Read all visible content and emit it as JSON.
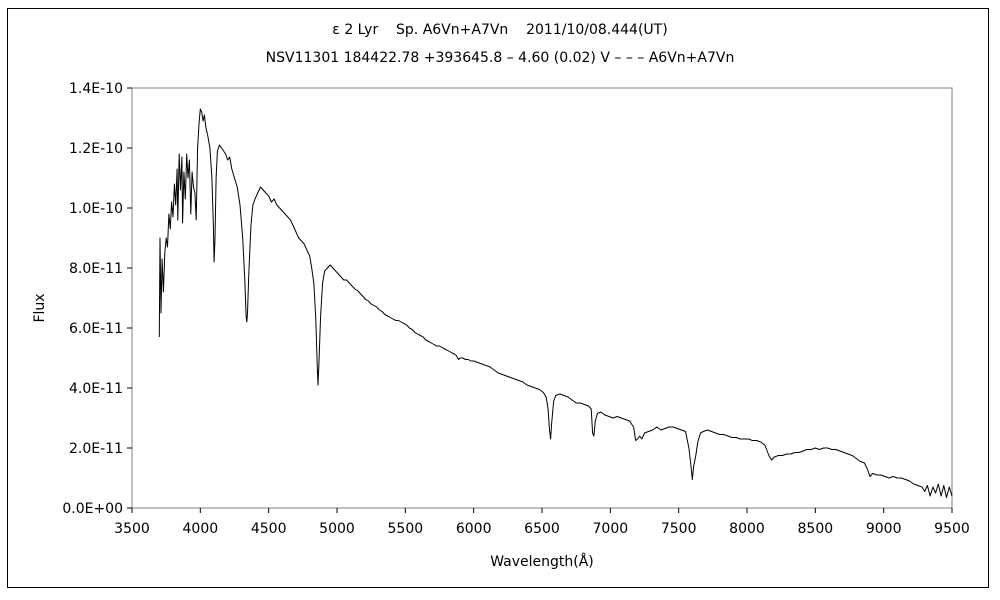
{
  "chart_data": {
    "type": "line",
    "title": "ε 2 Lyr    Sp. A6Vn+A7Vn    2011/10/08.444(UT)",
    "subtitle": "NSV11301 184422.78 +393645.8 – 4.60 (0.02) V – – – A6Vn+A7Vn",
    "xlabel": "Wavelength(Å)",
    "ylabel": "Flux",
    "xlim": [
      3500,
      9500
    ],
    "ylim": [
      0,
      1.4e-10
    ],
    "x_ticks": [
      "3500",
      "4000",
      "4500",
      "5000",
      "5500",
      "6000",
      "6500",
      "7000",
      "7500",
      "8000",
      "8500",
      "9000",
      "9500"
    ],
    "y_ticks": [
      "0.0E+00",
      "2.0E-11",
      "4.0E-11",
      "6.0E-11",
      "8.0E-11",
      "1.0E-10",
      "1.2E-10",
      "1.4E-10"
    ],
    "grid": false,
    "series": [
      {
        "points": [
          [
            3700,
            5.7e-11
          ],
          [
            3705,
            9e-11
          ],
          [
            3712,
            6.5e-11
          ],
          [
            3720,
            8.3e-11
          ],
          [
            3730,
            7.2e-11
          ],
          [
            3740,
            8.5e-11
          ],
          [
            3750,
            9e-11
          ],
          [
            3760,
            8.7e-11
          ],
          [
            3770,
            9.8e-11
          ],
          [
            3780,
            9.3e-11
          ],
          [
            3790,
            1.02e-10
          ],
          [
            3800,
            9.7e-11
          ],
          [
            3810,
            1.08e-10
          ],
          [
            3820,
            1.01e-10
          ],
          [
            3830,
            1.13e-10
          ],
          [
            3835,
            9.6e-11
          ],
          [
            3845,
            1.18e-10
          ],
          [
            3855,
            1.06e-10
          ],
          [
            3865,
            1.17e-10
          ],
          [
            3870,
            9.5e-11
          ],
          [
            3880,
            1.12e-10
          ],
          [
            3890,
            1.03e-10
          ],
          [
            3900,
            1.18e-10
          ],
          [
            3910,
            1.1e-10
          ],
          [
            3920,
            1.16e-10
          ],
          [
            3930,
            9.8e-11
          ],
          [
            3940,
            1.12e-10
          ],
          [
            3950,
            1.07e-10
          ],
          [
            3960,
            1.05e-10
          ],
          [
            3970,
            9.6e-11
          ],
          [
            3980,
            1.2e-10
          ],
          [
            3990,
            1.28e-10
          ],
          [
            4000,
            1.33e-10
          ],
          [
            4010,
            1.32e-10
          ],
          [
            4020,
            1.29e-10
          ],
          [
            4030,
            1.31e-10
          ],
          [
            4040,
            1.27e-10
          ],
          [
            4055,
            1.24e-10
          ],
          [
            4070,
            1.2e-10
          ],
          [
            4085,
            1.1e-10
          ],
          [
            4095,
            9.5e-11
          ],
          [
            4101,
            8.2e-11
          ],
          [
            4107,
            9e-11
          ],
          [
            4115,
            1.1e-10
          ],
          [
            4125,
            1.19e-10
          ],
          [
            4140,
            1.21e-10
          ],
          [
            4155,
            1.2e-10
          ],
          [
            4170,
            1.19e-10
          ],
          [
            4185,
            1.18e-10
          ],
          [
            4200,
            1.16e-10
          ],
          [
            4215,
            1.17e-10
          ],
          [
            4230,
            1.13e-10
          ],
          [
            4250,
            1.1e-10
          ],
          [
            4270,
            1.07e-10
          ],
          [
            4290,
            1.01e-10
          ],
          [
            4310,
            9e-11
          ],
          [
            4325,
            7.6e-11
          ],
          [
            4335,
            6.4e-11
          ],
          [
            4340,
            6.2e-11
          ],
          [
            4345,
            6.5e-11
          ],
          [
            4355,
            7.8e-11
          ],
          [
            4370,
            9.4e-11
          ],
          [
            4385,
            1.01e-10
          ],
          [
            4400,
            1.03e-10
          ],
          [
            4420,
            1.05e-10
          ],
          [
            4440,
            1.07e-10
          ],
          [
            4460,
            1.06e-10
          ],
          [
            4480,
            1.05e-10
          ],
          [
            4500,
            1.04e-10
          ],
          [
            4520,
            1.02e-10
          ],
          [
            4540,
            1.03e-10
          ],
          [
            4560,
            1.01e-10
          ],
          [
            4580,
            1e-10
          ],
          [
            4600,
            9.9e-11
          ],
          [
            4620,
            9.8e-11
          ],
          [
            4640,
            9.7e-11
          ],
          [
            4660,
            9.6e-11
          ],
          [
            4680,
            9.4e-11
          ],
          [
            4700,
            9.2e-11
          ],
          [
            4720,
            9e-11
          ],
          [
            4740,
            8.9e-11
          ],
          [
            4760,
            8.8e-11
          ],
          [
            4780,
            8.6e-11
          ],
          [
            4800,
            8.4e-11
          ],
          [
            4815,
            8e-11
          ],
          [
            4830,
            7.5e-11
          ],
          [
            4845,
            6.3e-11
          ],
          [
            4855,
            4.8e-11
          ],
          [
            4861,
            4.1e-11
          ],
          [
            4867,
            4.7e-11
          ],
          [
            4880,
            6.4e-11
          ],
          [
            4895,
            7.5e-11
          ],
          [
            4910,
            7.9e-11
          ],
          [
            4930,
            8e-11
          ],
          [
            4950,
            8.1e-11
          ],
          [
            4970,
            8e-11
          ],
          [
            4990,
            7.9e-11
          ],
          [
            5010,
            7.8e-11
          ],
          [
            5030,
            7.7e-11
          ],
          [
            5050,
            7.6e-11
          ],
          [
            5070,
            7.6e-11
          ],
          [
            5090,
            7.5e-11
          ],
          [
            5110,
            7.4e-11
          ],
          [
            5130,
            7.3e-11
          ],
          [
            5150,
            7.25e-11
          ],
          [
            5170,
            7.15e-11
          ],
          [
            5190,
            7.05e-11
          ],
          [
            5210,
            6.95e-11
          ],
          [
            5230,
            6.9e-11
          ],
          [
            5250,
            6.8e-11
          ],
          [
            5270,
            6.75e-11
          ],
          [
            5290,
            6.7e-11
          ],
          [
            5310,
            6.6e-11
          ],
          [
            5330,
            6.55e-11
          ],
          [
            5350,
            6.45e-11
          ],
          [
            5370,
            6.4e-11
          ],
          [
            5390,
            6.35e-11
          ],
          [
            5410,
            6.3e-11
          ],
          [
            5430,
            6.25e-11
          ],
          [
            5450,
            6.25e-11
          ],
          [
            5470,
            6.2e-11
          ],
          [
            5490,
            6.15e-11
          ],
          [
            5510,
            6.1e-11
          ],
          [
            5530,
            6e-11
          ],
          [
            5550,
            5.95e-11
          ],
          [
            5570,
            5.85e-11
          ],
          [
            5590,
            5.8e-11
          ],
          [
            5610,
            5.75e-11
          ],
          [
            5630,
            5.7e-11
          ],
          [
            5650,
            5.6e-11
          ],
          [
            5670,
            5.55e-11
          ],
          [
            5690,
            5.5e-11
          ],
          [
            5710,
            5.45e-11
          ],
          [
            5730,
            5.4e-11
          ],
          [
            5750,
            5.4e-11
          ],
          [
            5770,
            5.35e-11
          ],
          [
            5790,
            5.3e-11
          ],
          [
            5810,
            5.25e-11
          ],
          [
            5830,
            5.2e-11
          ],
          [
            5850,
            5.15e-11
          ],
          [
            5870,
            5.1e-11
          ],
          [
            5890,
            4.95e-11
          ],
          [
            5900,
            5e-11
          ],
          [
            5920,
            5e-11
          ],
          [
            5940,
            4.95e-11
          ],
          [
            5960,
            4.95e-11
          ],
          [
            5980,
            4.9e-11
          ],
          [
            6000,
            4.9e-11
          ],
          [
            6030,
            4.85e-11
          ],
          [
            6060,
            4.8e-11
          ],
          [
            6090,
            4.75e-11
          ],
          [
            6120,
            4.7e-11
          ],
          [
            6150,
            4.6e-11
          ],
          [
            6180,
            4.5e-11
          ],
          [
            6210,
            4.45e-11
          ],
          [
            6240,
            4.4e-11
          ],
          [
            6270,
            4.35e-11
          ],
          [
            6300,
            4.3e-11
          ],
          [
            6330,
            4.25e-11
          ],
          [
            6360,
            4.2e-11
          ],
          [
            6390,
            4.1e-11
          ],
          [
            6420,
            4.05e-11
          ],
          [
            6450,
            4e-11
          ],
          [
            6480,
            3.95e-11
          ],
          [
            6510,
            3.85e-11
          ],
          [
            6530,
            3.7e-11
          ],
          [
            6545,
            3.3e-11
          ],
          [
            6555,
            2.6e-11
          ],
          [
            6563,
            2.3e-11
          ],
          [
            6570,
            2.8e-11
          ],
          [
            6585,
            3.55e-11
          ],
          [
            6600,
            3.75e-11
          ],
          [
            6630,
            3.8e-11
          ],
          [
            6660,
            3.75e-11
          ],
          [
            6690,
            3.7e-11
          ],
          [
            6720,
            3.6e-11
          ],
          [
            6750,
            3.5e-11
          ],
          [
            6780,
            3.5e-11
          ],
          [
            6810,
            3.45e-11
          ],
          [
            6840,
            3.4e-11
          ],
          [
            6860,
            3.3e-11
          ],
          [
            6870,
            2.5e-11
          ],
          [
            6880,
            2.4e-11
          ],
          [
            6890,
            2.9e-11
          ],
          [
            6905,
            3.15e-11
          ],
          [
            6930,
            3.2e-11
          ],
          [
            6960,
            3.1e-11
          ],
          [
            6990,
            3.05e-11
          ],
          [
            7020,
            3e-11
          ],
          [
            7050,
            3.05e-11
          ],
          [
            7080,
            3e-11
          ],
          [
            7110,
            2.95e-11
          ],
          [
            7140,
            2.9e-11
          ],
          [
            7170,
            2.7e-11
          ],
          [
            7185,
            2.25e-11
          ],
          [
            7200,
            2.3e-11
          ],
          [
            7215,
            2.4e-11
          ],
          [
            7230,
            2.3e-11
          ],
          [
            7250,
            2.5e-11
          ],
          [
            7280,
            2.55e-11
          ],
          [
            7310,
            2.6e-11
          ],
          [
            7340,
            2.7e-11
          ],
          [
            7370,
            2.6e-11
          ],
          [
            7400,
            2.65e-11
          ],
          [
            7430,
            2.7e-11
          ],
          [
            7460,
            2.7e-11
          ],
          [
            7490,
            2.65e-11
          ],
          [
            7520,
            2.6e-11
          ],
          [
            7550,
            2.55e-11
          ],
          [
            7575,
            2e-11
          ],
          [
            7590,
            1.4e-11
          ],
          [
            7600,
            9.5e-12
          ],
          [
            7610,
            1.4e-11
          ],
          [
            7625,
            1.75e-11
          ],
          [
            7640,
            2.2e-11
          ],
          [
            7660,
            2.5e-11
          ],
          [
            7680,
            2.55e-11
          ],
          [
            7710,
            2.6e-11
          ],
          [
            7740,
            2.55e-11
          ],
          [
            7770,
            2.5e-11
          ],
          [
            7800,
            2.45e-11
          ],
          [
            7830,
            2.45e-11
          ],
          [
            7860,
            2.4e-11
          ],
          [
            7890,
            2.35e-11
          ],
          [
            7920,
            2.35e-11
          ],
          [
            7950,
            2.3e-11
          ],
          [
            7980,
            2.3e-11
          ],
          [
            8010,
            2.3e-11
          ],
          [
            8040,
            2.25e-11
          ],
          [
            8070,
            2.25e-11
          ],
          [
            8100,
            2.2e-11
          ],
          [
            8130,
            2.1e-11
          ],
          [
            8160,
            1.75e-11
          ],
          [
            8180,
            1.6e-11
          ],
          [
            8200,
            1.7e-11
          ],
          [
            8230,
            1.75e-11
          ],
          [
            8260,
            1.75e-11
          ],
          [
            8290,
            1.8e-11
          ],
          [
            8320,
            1.8e-11
          ],
          [
            8350,
            1.85e-11
          ],
          [
            8380,
            1.85e-11
          ],
          [
            8410,
            1.9e-11
          ],
          [
            8440,
            1.95e-11
          ],
          [
            8470,
            1.95e-11
          ],
          [
            8500,
            2e-11
          ],
          [
            8530,
            1.95e-11
          ],
          [
            8560,
            2e-11
          ],
          [
            8590,
            2e-11
          ],
          [
            8620,
            1.95e-11
          ],
          [
            8650,
            1.95e-11
          ],
          [
            8680,
            1.9e-11
          ],
          [
            8710,
            1.85e-11
          ],
          [
            8740,
            1.8e-11
          ],
          [
            8770,
            1.75e-11
          ],
          [
            8800,
            1.65e-11
          ],
          [
            8830,
            1.55e-11
          ],
          [
            8860,
            1.5e-11
          ],
          [
            8880,
            1.3e-11
          ],
          [
            8900,
            1.05e-11
          ],
          [
            8920,
            1.15e-11
          ],
          [
            8950,
            1.1e-11
          ],
          [
            8980,
            1.1e-11
          ],
          [
            9010,
            1.05e-11
          ],
          [
            9040,
            1e-11
          ],
          [
            9070,
            1.05e-11
          ],
          [
            9100,
            1e-11
          ],
          [
            9130,
            1e-11
          ],
          [
            9160,
            9.5e-12
          ],
          [
            9190,
            9e-12
          ],
          [
            9220,
            8e-12
          ],
          [
            9250,
            7.5e-12
          ],
          [
            9280,
            7e-12
          ],
          [
            9300,
            5.5e-12
          ],
          [
            9320,
            7.5e-12
          ],
          [
            9340,
            4e-12
          ],
          [
            9360,
            7e-12
          ],
          [
            9380,
            5e-12
          ],
          [
            9400,
            8e-12
          ],
          [
            9420,
            4e-12
          ],
          [
            9440,
            7.5e-12
          ],
          [
            9460,
            3.5e-12
          ],
          [
            9480,
            7e-12
          ],
          [
            9500,
            4e-12
          ]
        ]
      }
    ]
  }
}
